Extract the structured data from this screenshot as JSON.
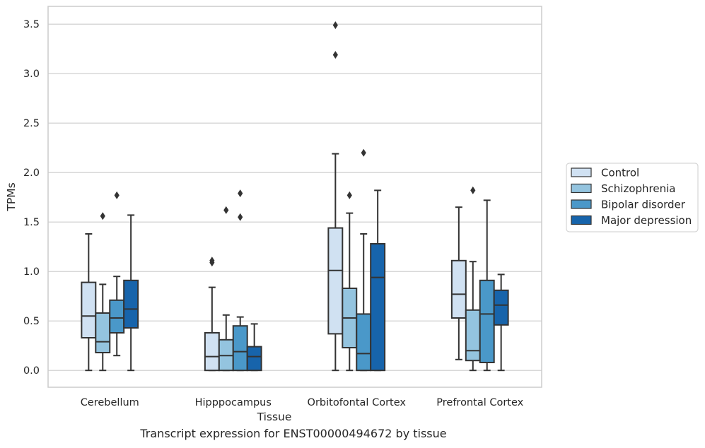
{
  "caption": "Transcript expression for ENST00000494672 by tissue",
  "colors": {
    "Control": "#d0e1f2",
    "Schizophrenia": "#94c4df",
    "Bipolar disorder": "#4a98c9",
    "Major depression": "#1764ab",
    "edge": "#333333",
    "grid": "#cccccc",
    "frame": "#cccccc"
  },
  "chart_data": {
    "type": "box",
    "xlabel": "Tissue",
    "ylabel": "TPMs",
    "ylim": [
      -0.17,
      3.68
    ],
    "yticks": [
      0.0,
      0.5,
      1.0,
      1.5,
      2.0,
      2.5,
      3.0,
      3.5
    ],
    "grid": "horizontal",
    "legend": "outside-right",
    "categories": [
      "Cerebellum",
      "Hipppocampus",
      "Orbitofontal Cortex",
      "Prefrontal Cortex"
    ],
    "series": [
      {
        "name": "Control",
        "boxes": [
          {
            "whislo": 0.0,
            "q1": 0.33,
            "med": 0.55,
            "q3": 0.89,
            "whishi": 1.38,
            "fliers": []
          },
          {
            "whislo": 0.0,
            "q1": 0.0,
            "med": 0.14,
            "q3": 0.38,
            "whishi": 0.84,
            "fliers": [
              1.09,
              1.11
            ]
          },
          {
            "whislo": 0.0,
            "q1": 0.37,
            "med": 1.01,
            "q3": 1.44,
            "whishi": 2.19,
            "fliers": [
              3.19,
              3.49
            ]
          },
          {
            "whislo": 0.11,
            "q1": 0.53,
            "med": 0.77,
            "q3": 1.11,
            "whishi": 1.65,
            "fliers": []
          }
        ]
      },
      {
        "name": "Schizophrenia",
        "boxes": [
          {
            "whislo": 0.0,
            "q1": 0.18,
            "med": 0.29,
            "q3": 0.58,
            "whishi": 0.87,
            "fliers": [
              1.56
            ]
          },
          {
            "whislo": 0.0,
            "q1": 0.0,
            "med": 0.15,
            "q3": 0.31,
            "whishi": 0.56,
            "fliers": [
              1.62
            ]
          },
          {
            "whislo": 0.0,
            "q1": 0.23,
            "med": 0.53,
            "q3": 0.83,
            "whishi": 1.59,
            "fliers": [
              1.77
            ]
          },
          {
            "whislo": 0.0,
            "q1": 0.1,
            "med": 0.2,
            "q3": 0.61,
            "whishi": 1.1,
            "fliers": [
              1.82
            ]
          }
        ]
      },
      {
        "name": "Bipolar disorder",
        "boxes": [
          {
            "whislo": 0.15,
            "q1": 0.38,
            "med": 0.53,
            "q3": 0.71,
            "whishi": 0.95,
            "fliers": [
              1.77
            ]
          },
          {
            "whislo": 0.0,
            "q1": 0.0,
            "med": 0.19,
            "q3": 0.45,
            "whishi": 0.54,
            "fliers": [
              1.55,
              1.79
            ]
          },
          {
            "whislo": 0.0,
            "q1": 0.0,
            "med": 0.17,
            "q3": 0.57,
            "whishi": 1.38,
            "fliers": [
              2.2
            ]
          },
          {
            "whislo": 0.0,
            "q1": 0.08,
            "med": 0.57,
            "q3": 0.91,
            "whishi": 1.72,
            "fliers": []
          }
        ]
      },
      {
        "name": "Major depression",
        "boxes": [
          {
            "whislo": 0.0,
            "q1": 0.43,
            "med": 0.62,
            "q3": 0.91,
            "whishi": 1.57,
            "fliers": []
          },
          {
            "whislo": 0.0,
            "q1": 0.0,
            "med": 0.14,
            "q3": 0.24,
            "whishi": 0.47,
            "fliers": []
          },
          {
            "whislo": 0.0,
            "q1": 0.0,
            "med": 0.94,
            "q3": 1.28,
            "whishi": 1.82,
            "fliers": []
          },
          {
            "whislo": 0.0,
            "q1": 0.46,
            "med": 0.66,
            "q3": 0.81,
            "whishi": 0.97,
            "fliers": []
          }
        ]
      }
    ]
  }
}
